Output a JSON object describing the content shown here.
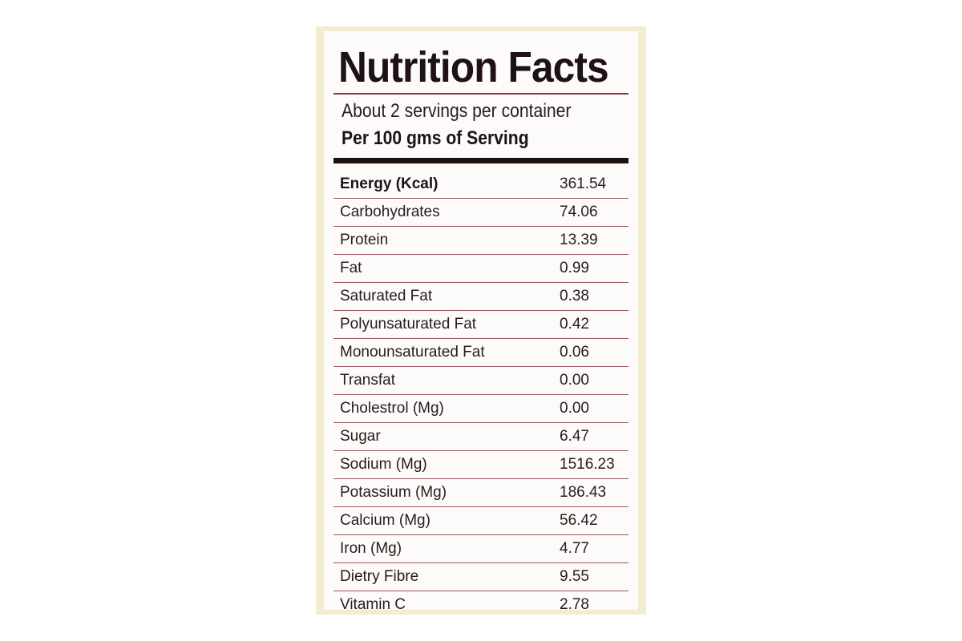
{
  "label": {
    "title": "Nutrition Facts",
    "servings_per_container": "About 2 servings per container",
    "serving_basis": "Per 100 gms of Serving",
    "nutrients": [
      {
        "name": "Energy (Kcal)",
        "value": "361.54"
      },
      {
        "name": "Carbohydrates",
        "value": "74.06"
      },
      {
        "name": "Protein",
        "value": "13.39"
      },
      {
        "name": "Fat",
        "value": "0.99"
      },
      {
        "name": "Saturated Fat",
        "value": "0.38"
      },
      {
        "name": "Polyunsaturated Fat",
        "value": "0.42"
      },
      {
        "name": "Monounsaturated Fat",
        "value": "0.06"
      },
      {
        "name": "Transfat",
        "value": "0.00"
      },
      {
        "name": "Cholestrol (Mg)",
        "value": "0.00"
      },
      {
        "name": "Sugar",
        "value": "6.47"
      },
      {
        "name": "Sodium (Mg)",
        "value": "1516.23"
      },
      {
        "name": "Potassium (Mg)",
        "value": "186.43"
      },
      {
        "name": "Calcium (Mg)",
        "value": "56.42"
      },
      {
        "name": "Iron (Mg)",
        "value": "4.77"
      },
      {
        "name": "Dietry Fibre",
        "value": "9.55"
      },
      {
        "name": "Vitamin C",
        "value": "2.78"
      }
    ]
  },
  "colors": {
    "card_border": "#f3ecd0",
    "card_face": "#fdfbfa",
    "rule": "#9a5560",
    "ink": "#1f1214"
  }
}
